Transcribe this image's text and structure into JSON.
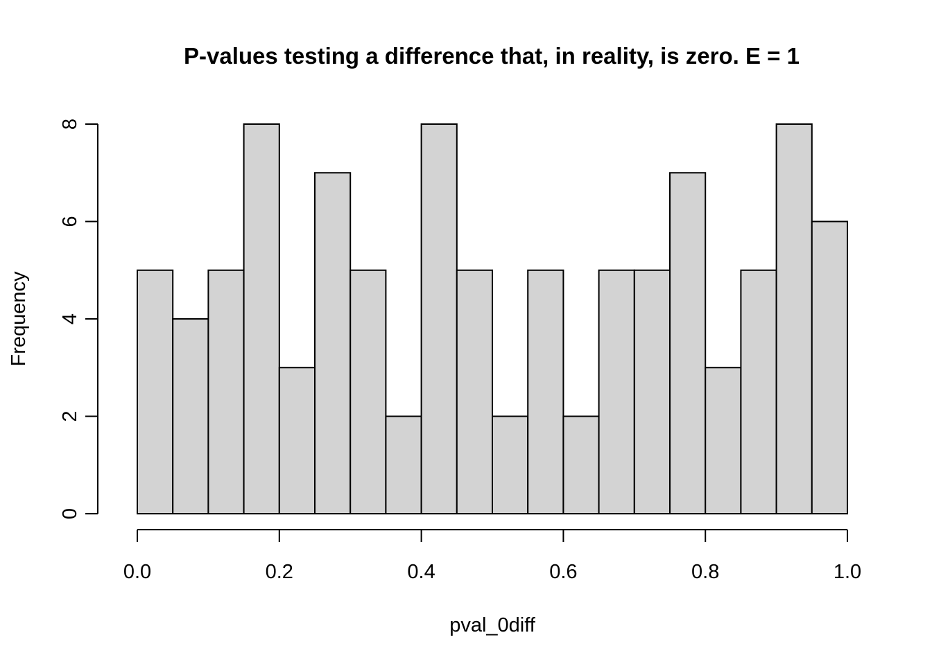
{
  "chart_data": {
    "type": "bar",
    "title": "P-values testing a difference that, in reality, is zero. E = 1",
    "xlabel": "pval_0diff",
    "ylabel": "Frequency",
    "bin_width": 0.05,
    "bin_edges_start": 0.0,
    "values": [
      5,
      4,
      5,
      8,
      3,
      7,
      5,
      2,
      8,
      5,
      2,
      5,
      2,
      5,
      5,
      7,
      3,
      5,
      8,
      6
    ],
    "xlim": [
      0,
      1
    ],
    "ylim": [
      0,
      8
    ],
    "x_ticks": [
      "0.0",
      "0.2",
      "0.4",
      "0.6",
      "0.8",
      "1.0"
    ],
    "x_tick_values": [
      0,
      0.2,
      0.4,
      0.6,
      0.8,
      1.0
    ],
    "y_ticks": [
      "0",
      "2",
      "4",
      "6",
      "8"
    ],
    "y_tick_values": [
      0,
      2,
      4,
      6,
      8
    ],
    "bar_fill": "#d3d3d3",
    "bar_stroke": "#000000",
    "grid": false
  }
}
